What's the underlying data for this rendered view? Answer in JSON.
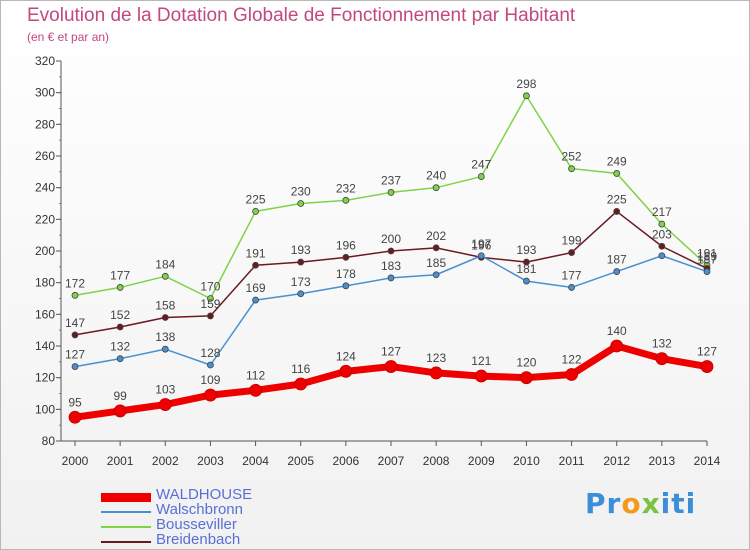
{
  "header": {
    "title": "Evolution de la Dotation Globale de Fonctionnement par Habitant",
    "subtitle": "(en € et par an)"
  },
  "logo": {
    "p1": "Pr",
    "p2": "o",
    "p3": "x",
    "p4": "iti"
  },
  "chart_data": {
    "type": "line",
    "title": "Evolution de la Dotation Globale de Fonctionnement par Habitant",
    "subtitle": "(en € et par an)",
    "xlabel": "",
    "ylabel": "",
    "ylim": [
      80,
      320
    ],
    "yticks": [
      80,
      100,
      120,
      140,
      160,
      180,
      200,
      220,
      240,
      260,
      280,
      300,
      320
    ],
    "grid": false,
    "legend_position": "bottom-left",
    "categories": [
      "2000",
      "2001",
      "2002",
      "2003",
      "2004",
      "2005",
      "2006",
      "2007",
      "2008",
      "2009",
      "2010",
      "2011",
      "2012",
      "2013",
      "2014"
    ],
    "series": [
      {
        "name": "Bousseviller",
        "color": "#7ed348",
        "values": [
          172,
          177,
          184,
          170,
          225,
          230,
          232,
          237,
          240,
          247,
          298,
          252,
          249,
          217,
          191
        ],
        "labels": [
          "172",
          "177",
          "184",
          "170",
          "225",
          "230",
          "232",
          "237",
          "240",
          "247",
          "298",
          "252",
          "249",
          "217",
          "191"
        ]
      },
      {
        "name": "Breidenbach",
        "color": "#6b1a22",
        "values": [
          147,
          152,
          158,
          159,
          191,
          193,
          196,
          200,
          202,
          196,
          193,
          199,
          225,
          203,
          189
        ],
        "labels": [
          "147",
          "152",
          "158",
          "159",
          "191",
          "193",
          "196",
          "200",
          "202",
          "196",
          "193",
          "199",
          "225",
          "203",
          "189"
        ]
      },
      {
        "name": "Walschbronn",
        "color": "#4a90d0",
        "values": [
          127,
          132,
          138,
          128,
          169,
          173,
          178,
          183,
          185,
          197,
          181,
          177,
          187,
          197,
          187
        ],
        "labels": [
          "127",
          "132",
          "138",
          "128",
          "169",
          "173",
          "178",
          "183",
          "185",
          "197",
          "181",
          "177",
          "187",
          "",
          "187"
        ]
      },
      {
        "name": "WALDHOUSE",
        "color": "#ee0000",
        "thick": true,
        "values": [
          95,
          99,
          103,
          109,
          112,
          116,
          124,
          127,
          123,
          121,
          120,
          122,
          140,
          132,
          127
        ],
        "labels": [
          "95",
          "99",
          "103",
          "109",
          "112",
          "116",
          "124",
          "127",
          "123",
          "121",
          "120",
          "122",
          "140",
          "132",
          "127"
        ]
      }
    ],
    "legend_order": [
      "WALDHOUSE",
      "Walschbronn",
      "Bousseviller",
      "Breidenbach"
    ]
  }
}
